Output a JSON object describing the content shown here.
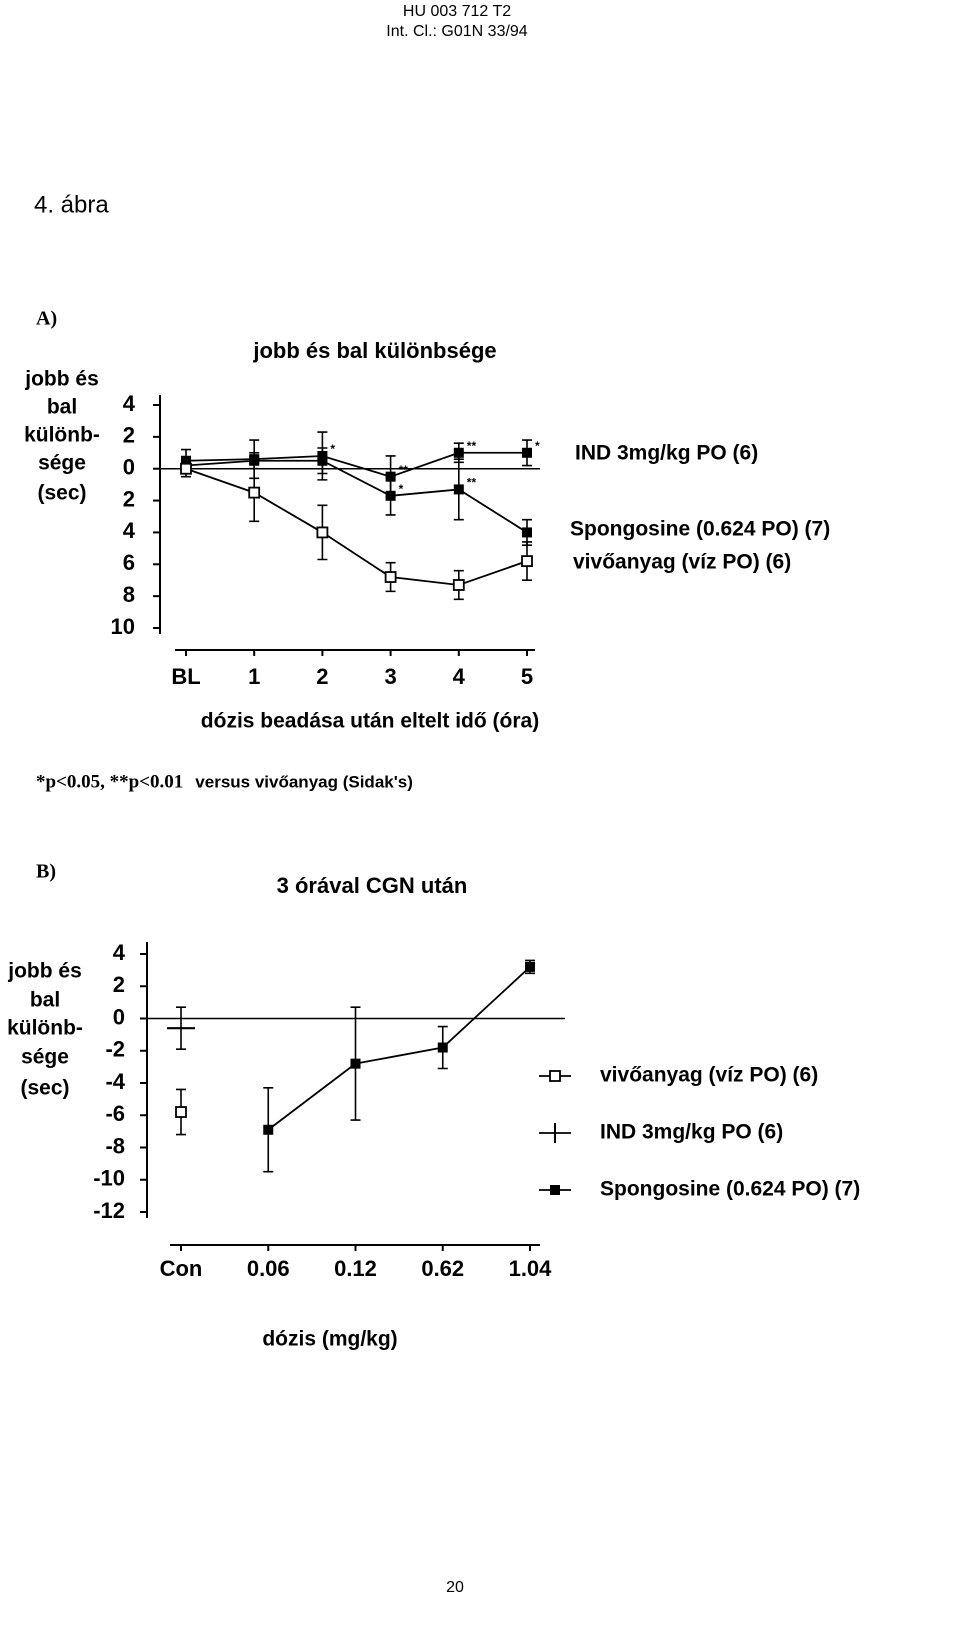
{
  "header": {
    "doc_number": "HU 003 712 T2",
    "classification": "Int. Cl.: G01N 33/94"
  },
  "figure_label": "4. ábra",
  "page_number": "20",
  "chart_data": [
    {
      "type": "line",
      "panel": "A)",
      "title": "jobb és bal különbsége",
      "ylabel": [
        "jobb és",
        "bal",
        "különb-",
        "sége",
        "(sec)"
      ],
      "xlabel": "dózis beadása után eltelt idő (óra)",
      "note_stats": "*p<0.05, **p<0.01",
      "note": "versus vivőanyag (Sidak's)",
      "categories": [
        "BL",
        "1",
        "2",
        "3",
        "4",
        "5"
      ],
      "ylim": [
        -10,
        4
      ],
      "yticks": [
        4,
        2,
        0,
        {
          "value": -2,
          "label": "2"
        },
        {
          "value": -4,
          "label": "4"
        },
        {
          "value": -6,
          "label": "6"
        },
        {
          "value": -8,
          "label": "8"
        },
        {
          "value": -10,
          "label": "10"
        }
      ],
      "legend": "line-end",
      "series": [
        {
          "name": "IND 3mg/kg PO (6)",
          "color": "#000000",
          "marker": "filled-square",
          "values": [
            0.5,
            0.6,
            0.8,
            -0.5,
            1.0,
            1.0
          ],
          "errors": [
            0.7,
            1.2,
            1.5,
            1.3,
            0.6,
            0.8
          ]
        },
        {
          "name": "Spongosine (0.624 PO) (7)",
          "color": "#000000",
          "marker": "filled-square",
          "values": [
            0.2,
            0.5,
            0.5,
            -1.7,
            -1.3,
            -4.0
          ],
          "errors": [
            0.5,
            0.5,
            0.8,
            1.2,
            1.9,
            0.8
          ]
        },
        {
          "name": "vivőanyag (víz PO) (6)",
          "color": "#000000",
          "marker": "open-square",
          "values": [
            0,
            -1.5,
            -4.0,
            -6.8,
            -7.3,
            -5.8
          ],
          "errors": [
            0.5,
            1.8,
            1.7,
            0.9,
            0.9,
            1.2
          ]
        }
      ],
      "annotations": [
        {
          "text": "*",
          "series": 0,
          "category": "2"
        },
        {
          "text": "**",
          "series": 0,
          "category": "3"
        },
        {
          "text": "**",
          "series": 0,
          "category": "4"
        },
        {
          "text": "*",
          "series": 0,
          "category": "5"
        },
        {
          "text": "*",
          "series": 1,
          "category": "3"
        },
        {
          "text": "**",
          "series": 1,
          "category": "4"
        }
      ]
    },
    {
      "type": "line",
      "panel": "B)",
      "title": "3 órával CGN után",
      "ylabel": [
        "jobb és",
        "bal",
        "különb-",
        "sége",
        "(sec)"
      ],
      "xlabel": "dózis (mg/kg)",
      "categories": [
        "Con",
        "0.06",
        "0.12",
        "0.62",
        "1.04"
      ],
      "ylim": [
        -12,
        4
      ],
      "yticks": [
        4,
        2,
        0,
        -2,
        -4,
        -6,
        -8,
        -10,
        -12
      ],
      "legend": "right",
      "series": [
        {
          "name": "vivőanyag (víz PO) (6)",
          "color": "#000000",
          "marker": "open-square",
          "values": [
            -5.8,
            null,
            null,
            null,
            null
          ],
          "errors": [
            1.4,
            null,
            null,
            null,
            null
          ]
        },
        {
          "name": "IND 3mg/kg PO (6)",
          "color": "#000000",
          "marker": "cross",
          "values": [
            -0.6,
            null,
            null,
            null,
            null
          ],
          "errors": [
            1.3,
            null,
            null,
            null,
            null
          ]
        },
        {
          "name": "Spongosine (0.624 PO) (7)",
          "color": "#000000",
          "marker": "filled-square",
          "values": [
            null,
            -6.9,
            -2.8,
            -1.8,
            3.2
          ],
          "errors": [
            null,
            2.6,
            3.5,
            1.3,
            0.4
          ]
        }
      ]
    }
  ]
}
